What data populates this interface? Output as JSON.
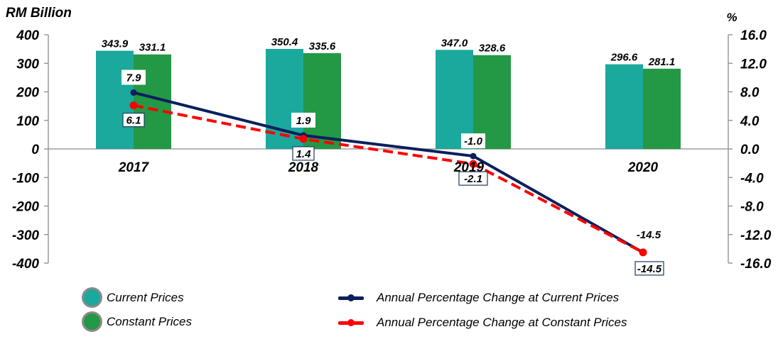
{
  "chart_data": {
    "type": "bar",
    "title": "",
    "categories": [
      "2017",
      "2018",
      "2019",
      "2020"
    ],
    "left_axis": {
      "label": "RM Billion",
      "ylim": [
        -400,
        400
      ],
      "ticks": [
        400,
        300,
        200,
        100,
        0,
        -100,
        -200,
        -300,
        -400
      ],
      "tick_labels": [
        "400",
        "300",
        "200",
        "100",
        "0",
        "-100",
        "-200",
        "-300",
        "-400"
      ]
    },
    "right_axis": {
      "label": "%",
      "ylim": [
        -16,
        16
      ],
      "ticks": [
        16,
        12,
        8,
        4,
        0,
        -4,
        -8,
        -12,
        -16
      ],
      "tick_labels": [
        "16.0",
        "12.0",
        "8.0",
        "4.0",
        "0.0",
        "-4.0",
        "-8.0",
        "-12.0",
        "-16.0"
      ]
    },
    "bar_series": [
      {
        "name": "Current Prices",
        "color": "#1aa99c",
        "axis": "left",
        "values": [
          343.9,
          350.4,
          347.0,
          296.6
        ],
        "labels": [
          "343.9",
          "350.4",
          "347.0",
          "296.6"
        ]
      },
      {
        "name": "Constant Prices",
        "color": "#239845",
        "axis": "left",
        "values": [
          331.1,
          335.6,
          328.6,
          281.1
        ],
        "labels": [
          "331.1",
          "335.6",
          "328.6",
          "281.1"
        ]
      }
    ],
    "line_series": [
      {
        "name": "Annual Percentage Change at Current Prices",
        "color": "#0b1f5c",
        "style": "solid",
        "axis": "right",
        "values": [
          7.9,
          1.9,
          -1.0,
          -14.5
        ],
        "labels": [
          "7.9",
          "1.9",
          "-1.0",
          "-14.5"
        ]
      },
      {
        "name": "Annual Percentage Change at Constant Prices",
        "color": "#ff0000",
        "style": "dashed",
        "axis": "right",
        "values": [
          6.1,
          1.4,
          -2.1,
          -14.5
        ],
        "labels": [
          "6.1",
          "1.4",
          "-2.1",
          "-14.5"
        ]
      }
    ],
    "grid": false,
    "legend_position": "bottom"
  },
  "legend": {
    "current_prices": "Current Prices",
    "constant_prices": "Constant Prices",
    "pct_current": "Annual Percentage Change at Current Prices",
    "pct_constant": "Annual Percentage Change at Constant Prices"
  }
}
